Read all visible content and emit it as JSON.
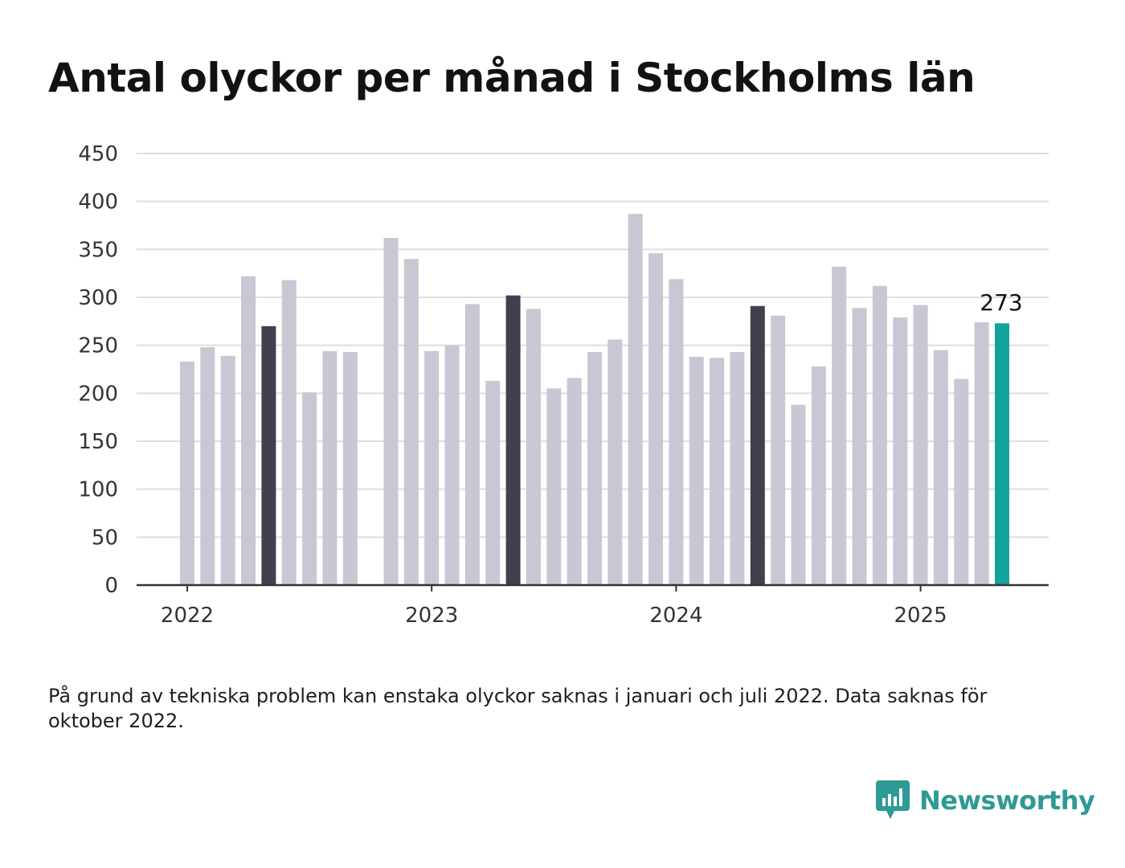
{
  "title": "Antal olyckor per månad i Stockholms län",
  "note": "På grund av tekniska problem kan enstaka olyckor saknas i januari och juli 2022. Data saknas för oktober 2022.",
  "brand": {
    "name": "Newsworthy",
    "icon": "bar-chart-speech-bubble-icon",
    "color": "#2e9a94"
  },
  "colors": {
    "bar_default": "#c8c7d3",
    "bar_highlight": "#41404f",
    "bar_latest": "#13a39a",
    "grid": "#dedede",
    "axis": "#333333"
  },
  "chart_data": {
    "type": "bar",
    "title": "Antal olyckor per månad i Stockholms län",
    "xlabel": "",
    "ylabel": "",
    "ylim": [
      0,
      450
    ],
    "y_ticks": [
      0,
      50,
      100,
      150,
      200,
      250,
      300,
      350,
      400,
      450
    ],
    "x_tick_labels": [
      {
        "label": "2022",
        "month": "2022-01"
      },
      {
        "label": "2023",
        "month": "2023-01"
      },
      {
        "label": "2024",
        "month": "2024-01"
      },
      {
        "label": "2025",
        "month": "2025-01"
      }
    ],
    "grid": true,
    "legend": "none",
    "data_labels": [
      {
        "month": "2025-05",
        "text": "273"
      }
    ],
    "bars": [
      {
        "month": "2022-01",
        "value": 233,
        "style": "default"
      },
      {
        "month": "2022-02",
        "value": 248,
        "style": "default"
      },
      {
        "month": "2022-03",
        "value": 239,
        "style": "default"
      },
      {
        "month": "2022-04",
        "value": 322,
        "style": "default"
      },
      {
        "month": "2022-05",
        "value": 270,
        "style": "highlight"
      },
      {
        "month": "2022-06",
        "value": 318,
        "style": "default"
      },
      {
        "month": "2022-07",
        "value": 201,
        "style": "default"
      },
      {
        "month": "2022-08",
        "value": 244,
        "style": "default"
      },
      {
        "month": "2022-09",
        "value": 243,
        "style": "default"
      },
      {
        "month": "2022-10",
        "value": null,
        "style": "default"
      },
      {
        "month": "2022-11",
        "value": 362,
        "style": "default"
      },
      {
        "month": "2022-12",
        "value": 340,
        "style": "default"
      },
      {
        "month": "2023-01",
        "value": 244,
        "style": "default"
      },
      {
        "month": "2023-02",
        "value": 250,
        "style": "default"
      },
      {
        "month": "2023-03",
        "value": 293,
        "style": "default"
      },
      {
        "month": "2023-04",
        "value": 213,
        "style": "default"
      },
      {
        "month": "2023-05",
        "value": 302,
        "style": "highlight"
      },
      {
        "month": "2023-06",
        "value": 288,
        "style": "default"
      },
      {
        "month": "2023-07",
        "value": 205,
        "style": "default"
      },
      {
        "month": "2023-08",
        "value": 216,
        "style": "default"
      },
      {
        "month": "2023-09",
        "value": 243,
        "style": "default"
      },
      {
        "month": "2023-10",
        "value": 256,
        "style": "default"
      },
      {
        "month": "2023-11",
        "value": 387,
        "style": "default"
      },
      {
        "month": "2023-12",
        "value": 346,
        "style": "default"
      },
      {
        "month": "2024-01",
        "value": 319,
        "style": "default"
      },
      {
        "month": "2024-02",
        "value": 238,
        "style": "default"
      },
      {
        "month": "2024-03",
        "value": 237,
        "style": "default"
      },
      {
        "month": "2024-04",
        "value": 243,
        "style": "default"
      },
      {
        "month": "2024-05",
        "value": 291,
        "style": "highlight"
      },
      {
        "month": "2024-06",
        "value": 281,
        "style": "default"
      },
      {
        "month": "2024-07",
        "value": 188,
        "style": "default"
      },
      {
        "month": "2024-08",
        "value": 228,
        "style": "default"
      },
      {
        "month": "2024-09",
        "value": 332,
        "style": "default"
      },
      {
        "month": "2024-10",
        "value": 289,
        "style": "default"
      },
      {
        "month": "2024-11",
        "value": 312,
        "style": "default"
      },
      {
        "month": "2024-12",
        "value": 279,
        "style": "default"
      },
      {
        "month": "2025-01",
        "value": 292,
        "style": "default"
      },
      {
        "month": "2025-02",
        "value": 245,
        "style": "default"
      },
      {
        "month": "2025-03",
        "value": 215,
        "style": "default"
      },
      {
        "month": "2025-04",
        "value": 274,
        "style": "default"
      },
      {
        "month": "2025-05",
        "value": 273,
        "style": "latest"
      }
    ]
  }
}
